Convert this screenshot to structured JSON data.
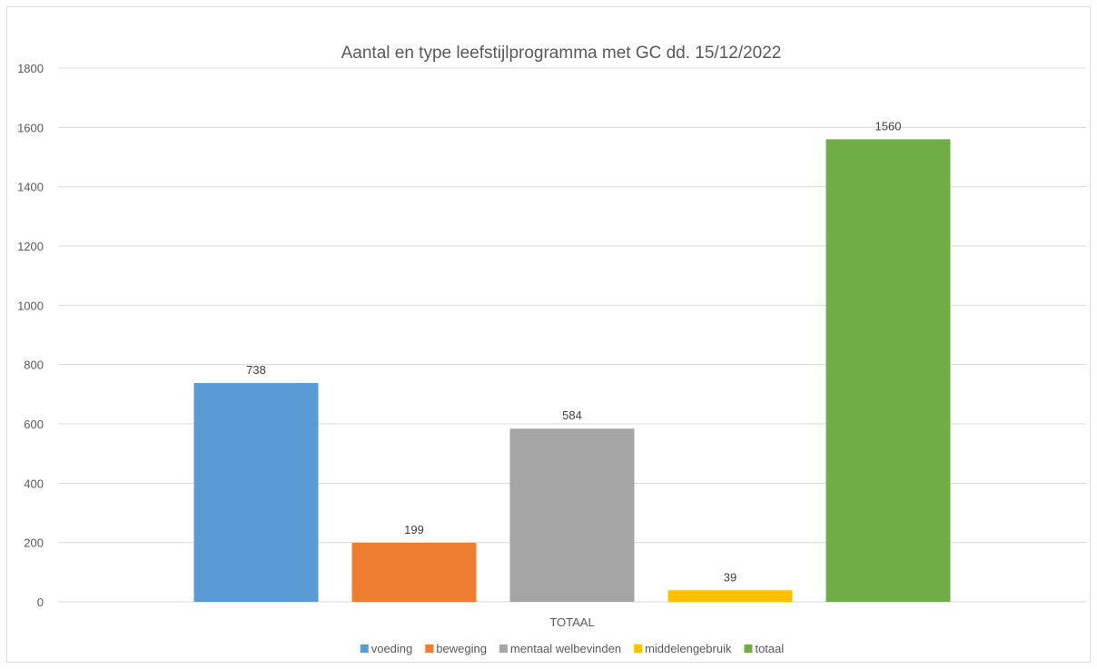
{
  "chart_data": {
    "type": "bar",
    "title": "Aantal en type leefstijlprogramma met GC dd. 15/12/2022",
    "categories": [
      "TOTAAL"
    ],
    "series": [
      {
        "name": "voeding",
        "values": [
          738
        ],
        "color": "#5b9bd5"
      },
      {
        "name": "beweging",
        "values": [
          199
        ],
        "color": "#ed7d31"
      },
      {
        "name": "mentaal welbevinden",
        "values": [
          584
        ],
        "color": "#a5a5a5"
      },
      {
        "name": "middelengebruik",
        "values": [
          39
        ],
        "color": "#ffc000"
      },
      {
        "name": "totaal",
        "values": [
          1560
        ],
        "color": "#70ad47"
      }
    ],
    "ylim": [
      0,
      1800
    ],
    "yticks": [
      0,
      200,
      400,
      600,
      800,
      1000,
      1200,
      1400,
      1600,
      1800
    ],
    "grid": true,
    "legend": "bottom",
    "data_labels": true,
    "xlabel": "",
    "ylabel": ""
  }
}
